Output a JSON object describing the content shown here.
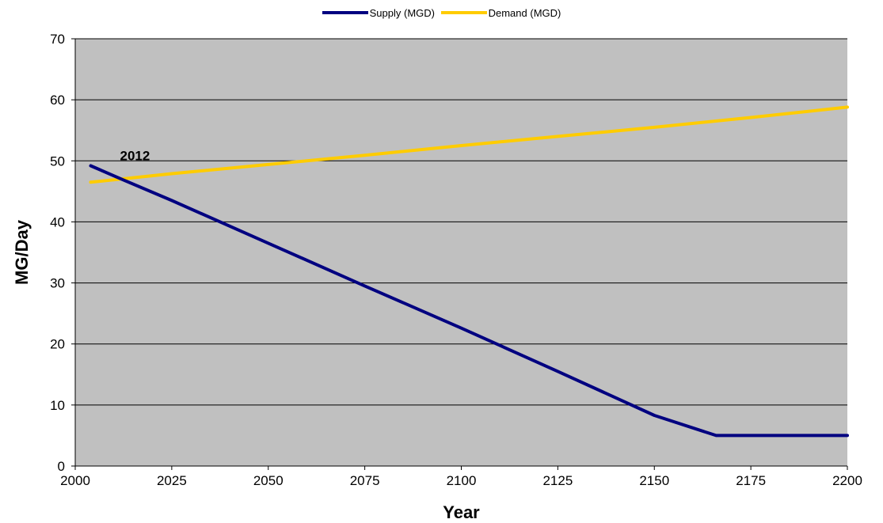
{
  "chart_data": {
    "type": "line",
    "title": "",
    "xlabel": "Year",
    "ylabel": "MG/Day",
    "xlim": [
      2000,
      2200
    ],
    "ylim": [
      0,
      70
    ],
    "x_ticks": [
      2000,
      2025,
      2050,
      2075,
      2100,
      2125,
      2150,
      2175,
      2200
    ],
    "y_ticks": [
      0,
      10,
      20,
      30,
      40,
      50,
      60,
      70
    ],
    "grid": "horizontal",
    "legend_position": "top-center",
    "plot_background": "#c0c0c0",
    "series": [
      {
        "name": "Supply (MGD)",
        "color": "#000080",
        "x": [
          2004,
          2012,
          2025,
          2050,
          2075,
          2100,
          2125,
          2150,
          2166,
          2175,
          2200
        ],
        "values": [
          49.2,
          47.0,
          43.5,
          36.5,
          29.5,
          22.6,
          15.5,
          8.3,
          5.0,
          5.0,
          5.0
        ]
      },
      {
        "name": "Demand (MGD)",
        "color": "#ffcc00",
        "x": [
          2004,
          2025,
          2050,
          2075,
          2100,
          2125,
          2150,
          2175,
          2200
        ],
        "values": [
          46.5,
          47.9,
          49.4,
          50.9,
          52.5,
          54.0,
          55.5,
          57.1,
          58.8
        ]
      }
    ],
    "annotations": [
      {
        "text": "2012",
        "x": 2012,
        "y": 47.0
      }
    ]
  }
}
